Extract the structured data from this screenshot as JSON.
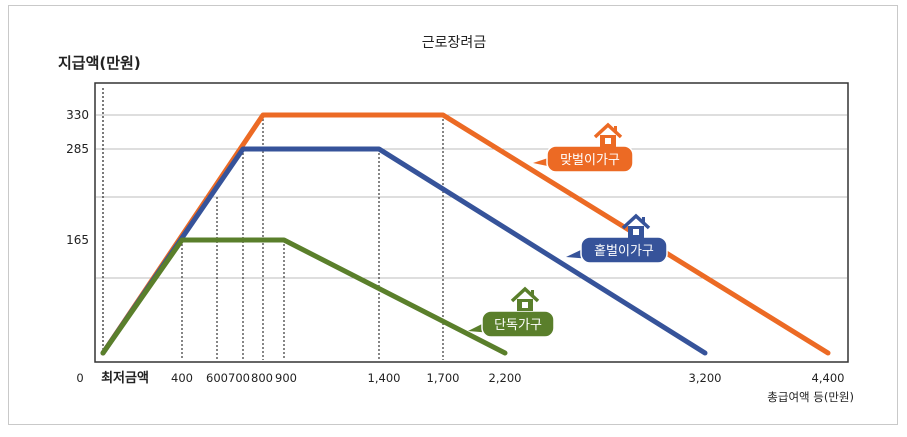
{
  "chart_data": {
    "type": "line",
    "title": "근로장려금",
    "ylabel": "지급액(만원)",
    "xlabel": "총급여액 등(만원)",
    "x_ticks": [
      "0",
      "최저금액",
      "400",
      "600",
      "700",
      "800",
      "900",
      "1,400",
      "1,700",
      "2,200",
      "3,200",
      "4,400"
    ],
    "y_ticks": [
      "330",
      "285",
      "165"
    ],
    "series": [
      {
        "name": "맞벌이가구",
        "color": "#ec6a24",
        "points": [
          [
            0,
            0
          ],
          [
            800,
            330
          ],
          [
            1700,
            330
          ],
          [
            4400,
            0
          ]
        ]
      },
      {
        "name": "홑벌이가구",
        "color": "#36539a",
        "points": [
          [
            0,
            0
          ],
          [
            700,
            285
          ],
          [
            1400,
            285
          ],
          [
            3200,
            0
          ]
        ]
      },
      {
        "name": "단독가구",
        "color": "#5a7f2b",
        "points": [
          [
            0,
            0
          ],
          [
            400,
            165
          ],
          [
            900,
            165
          ],
          [
            2200,
            0
          ]
        ]
      }
    ]
  }
}
